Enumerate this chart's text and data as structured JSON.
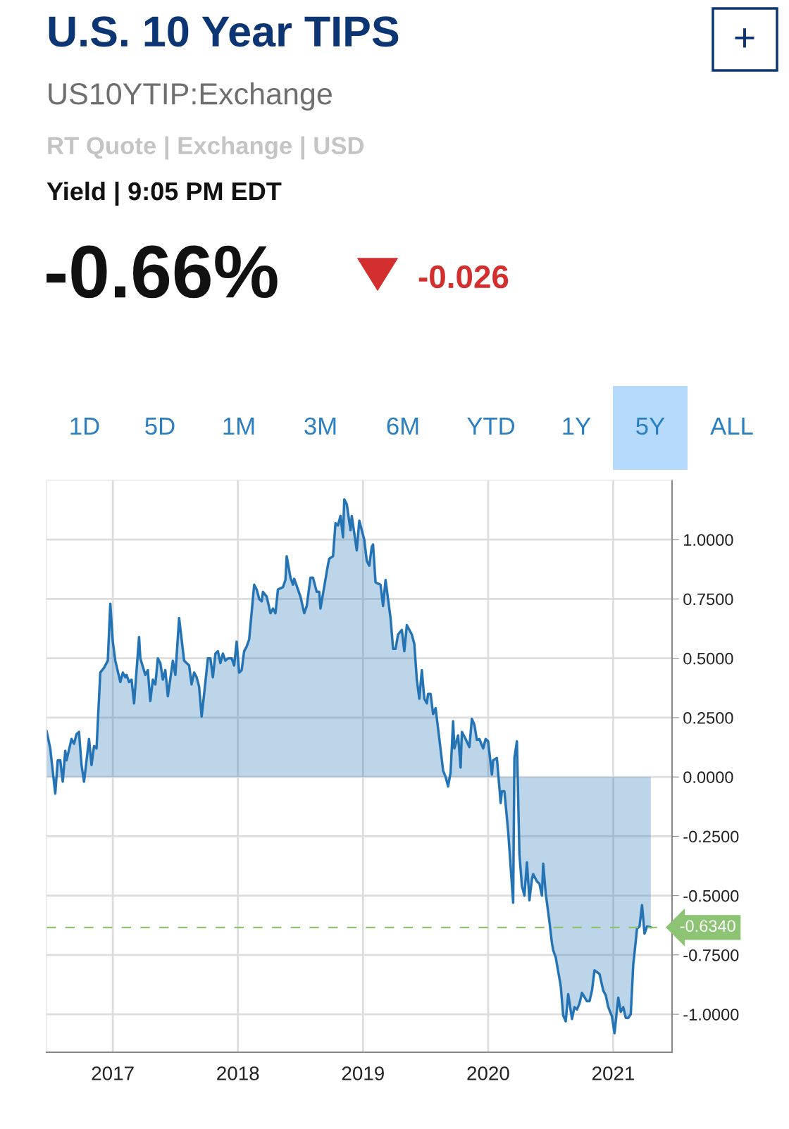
{
  "chart_data": {
    "type": "area",
    "title": "U.S. 10 Year TIPS",
    "subtitle": "US10YTIP:Exchange",
    "annotations": [
      "RT Quote | Exchange | USD",
      "Yield | 9:05 PM EDT",
      "-0.66%",
      "-0.026",
      "+",
      "1D",
      "5D",
      "1M",
      "3M",
      "6M",
      "YTD",
      "1Y",
      "5Y",
      "ALL"
    ],
    "x": [
      2016.47,
      2016.5,
      2016.54,
      2016.56,
      2016.58,
      2016.6,
      2016.62,
      2016.63,
      2016.67,
      2016.69,
      2016.71,
      2016.73,
      2016.75,
      2016.77,
      2016.81,
      2016.83,
      2016.85,
      2016.87,
      2016.9,
      2016.93,
      2016.96,
      2016.98,
      2017.0,
      2017.02,
      2017.06,
      2017.08,
      2017.1,
      2017.11,
      2017.13,
      2017.15,
      2017.17,
      2017.21,
      2017.22,
      2017.26,
      2017.28,
      2017.3,
      2017.32,
      2017.34,
      2017.36,
      2017.38,
      2017.4,
      2017.42,
      2017.44,
      2017.48,
      2017.5,
      2017.53,
      2017.57,
      2017.61,
      2017.63,
      2017.65,
      2017.67,
      2017.69,
      2017.71,
      2017.73,
      2017.76,
      2017.78,
      2017.8,
      2017.82,
      2017.84,
      2017.86,
      2017.88,
      2017.9,
      2017.92,
      2017.95,
      2017.97,
      2017.99,
      2018.01,
      2018.03,
      2018.05,
      2018.07,
      2018.09,
      2018.13,
      2018.15,
      2018.17,
      2018.19,
      2018.2,
      2018.23,
      2018.26,
      2018.28,
      2018.3,
      2018.32,
      2018.36,
      2018.38,
      2018.39,
      2018.42,
      2018.44,
      2018.45,
      2018.5,
      2018.53,
      2018.55,
      2018.58,
      2018.6,
      2018.63,
      2018.65,
      2018.66,
      2018.72,
      2018.73,
      2018.76,
      2018.78,
      2018.8,
      2018.82,
      2018.84,
      2018.85,
      2018.87,
      2018.9,
      2018.91,
      2018.95,
      2018.97,
      2019.01,
      2019.03,
      2019.05,
      2019.07,
      2019.08,
      2019.1,
      2019.14,
      2019.16,
      2019.18,
      2019.22,
      2019.24,
      2019.26,
      2019.28,
      2019.31,
      2019.33,
      2019.35,
      2019.39,
      2019.41,
      2019.43,
      2019.45,
      2019.47,
      2019.49,
      2019.51,
      2019.52,
      2019.54,
      2019.56,
      2019.58,
      2019.61,
      2019.64,
      2019.66,
      2019.68,
      2019.7,
      2019.72,
      2019.73,
      2019.76,
      2019.78,
      2019.79,
      2019.82,
      2019.85,
      2019.87,
      2019.89,
      2019.91,
      2019.93,
      2019.96,
      2019.98,
      2020.0,
      2020.03,
      2020.04,
      2020.07,
      2020.1,
      2020.11,
      2020.13,
      2020.16,
      2020.2,
      2020.21,
      2020.23,
      2020.25,
      2020.27,
      2020.29,
      2020.31,
      2020.33,
      2020.35,
      2020.36,
      2020.39,
      2020.41,
      2020.43,
      2020.44,
      2020.46,
      2020.49,
      2020.51,
      2020.52,
      2020.54,
      2020.58,
      2020.6,
      2020.62,
      2020.64,
      2020.67,
      2020.69,
      2020.71,
      2020.73,
      2020.75,
      2020.79,
      2020.81,
      2020.83,
      2020.85,
      2020.89,
      2020.92,
      2020.94,
      2020.96,
      2020.99,
      2021.01,
      2021.04,
      2021.06,
      2021.08,
      2021.1,
      2021.12,
      2021.14,
      2021.16,
      2021.19,
      2021.21,
      2021.23,
      2021.25,
      2021.27,
      2021.3
    ],
    "series": [
      {
        "color": "#2474b5",
        "values": [
          0.195,
          0.12,
          -0.07,
          0.07,
          0.07,
          -0.02,
          0.11,
          0.07,
          0.16,
          0.14,
          0.18,
          0.19,
          0.05,
          -0.02,
          0.16,
          0.05,
          0.13,
          0.12,
          0.44,
          0.46,
          0.49,
          0.73,
          0.57,
          0.49,
          0.4,
          0.44,
          0.42,
          0.43,
          0.4,
          0.41,
          0.31,
          0.59,
          0.5,
          0.43,
          0.45,
          0.32,
          0.41,
          0.39,
          0.5,
          0.48,
          0.41,
          0.45,
          0.34,
          0.49,
          0.43,
          0.67,
          0.49,
          0.47,
          0.39,
          0.44,
          0.42,
          0.38,
          0.255,
          0.35,
          0.5,
          0.5,
          0.42,
          0.52,
          0.53,
          0.48,
          0.52,
          0.49,
          0.5,
          0.5,
          0.47,
          0.57,
          0.44,
          0.45,
          0.53,
          0.55,
          0.58,
          0.81,
          0.79,
          0.75,
          0.74,
          0.78,
          0.76,
          0.69,
          0.71,
          0.69,
          0.79,
          0.8,
          0.83,
          0.93,
          0.84,
          0.81,
          0.835,
          0.76,
          0.69,
          0.72,
          0.84,
          0.84,
          0.78,
          0.78,
          0.71,
          0.895,
          0.92,
          0.93,
          1.07,
          1.06,
          1.1,
          1.01,
          1.17,
          1.15,
          1.04,
          1.1,
          0.955,
          1.08,
          1.0,
          0.91,
          0.89,
          0.97,
          0.98,
          0.82,
          0.81,
          0.72,
          0.83,
          0.67,
          0.54,
          0.54,
          0.6,
          0.62,
          0.53,
          0.64,
          0.6,
          0.56,
          0.41,
          0.33,
          0.45,
          0.33,
          0.31,
          0.35,
          0.35,
          0.265,
          0.29,
          0.16,
          0.027,
          0.0,
          -0.04,
          0.02,
          0.235,
          0.12,
          0.175,
          0.04,
          0.19,
          0.16,
          0.126,
          0.245,
          0.22,
          0.156,
          0.16,
          0.12,
          0.16,
          0.15,
          0.01,
          0.07,
          0.08,
          -0.11,
          -0.06,
          -0.06,
          -0.23,
          -0.53,
          0.08,
          0.15,
          -0.325,
          -0.46,
          -0.5,
          -0.36,
          -0.52,
          -0.43,
          -0.41,
          -0.44,
          -0.45,
          -0.5,
          -0.365,
          -0.49,
          -0.61,
          -0.7,
          -0.73,
          -0.76,
          -0.88,
          -1.005,
          -1.03,
          -0.915,
          -1.02,
          -0.97,
          -0.98,
          -0.955,
          -0.91,
          -0.945,
          -0.945,
          -0.9,
          -0.815,
          -0.83,
          -0.9,
          -0.92,
          -0.97,
          -1.01,
          -1.08,
          -0.93,
          -0.99,
          -0.97,
          -1.015,
          -1.015,
          -1.0,
          -0.79,
          -0.64,
          -0.63,
          -0.54,
          -0.66,
          -0.63,
          -0.634
        ]
      }
    ],
    "xlim": [
      2016.47,
      2021.47
    ],
    "xticks": [
      2017,
      2018,
      2019,
      2020,
      2021
    ],
    "ylim": [
      -1.16,
      1.25
    ],
    "yticks": [
      {
        "value": -1,
        "label": "-1.0000"
      },
      {
        "value": -0.75,
        "label": "-0.7500"
      },
      {
        "value": -0.5,
        "label": "-0.5000"
      },
      {
        "value": -0.25,
        "label": "-0.2500"
      },
      {
        "value": 0,
        "label": "0.0000"
      },
      {
        "value": 0.25,
        "label": "0.2500"
      },
      {
        "value": 0.5,
        "label": "0.5000"
      },
      {
        "value": 0.75,
        "label": "0.7500"
      },
      {
        "value": 1,
        "label": "1.0000"
      }
    ],
    "ref_lines": [
      {
        "axis": "y",
        "value": -0.634,
        "label": "-0.6340",
        "color": "#8cc474",
        "line_style": "dashed"
      }
    ],
    "grid": true
  }
}
